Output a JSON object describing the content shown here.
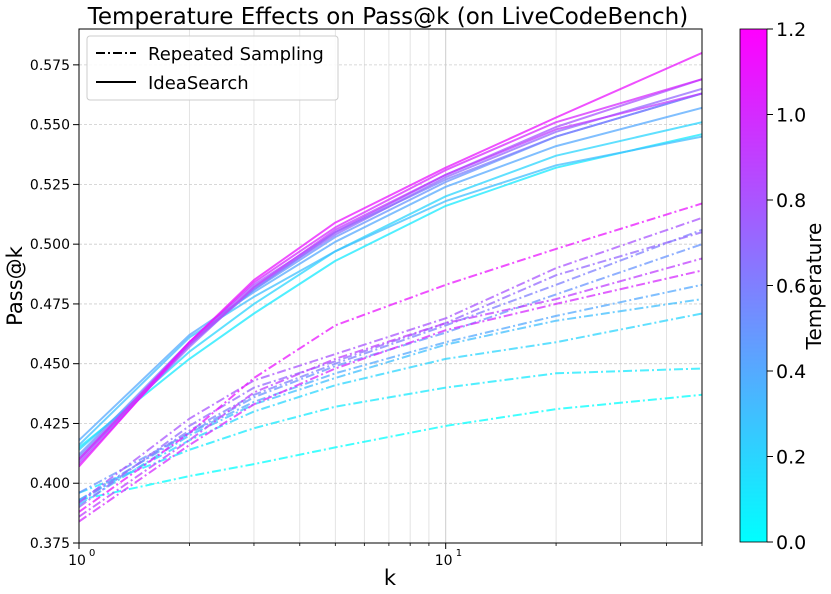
{
  "chart_data": {
    "type": "line",
    "title": "Temperature Effects on Pass@k (on LiveCodeBench)",
    "xlabel": "k",
    "ylabel": "Pass@k",
    "xscale": "log",
    "xlim": [
      1,
      50
    ],
    "ylim": [
      0.375,
      0.59
    ],
    "x_major_ticks": [
      1,
      10
    ],
    "x_tick_labels": [
      [
        "10",
        "0"
      ],
      [
        "10",
        "1"
      ]
    ],
    "y_ticks": [
      0.375,
      0.4,
      0.425,
      0.45,
      0.475,
      0.5,
      0.525,
      0.55,
      0.575
    ],
    "y_tick_labels": [
      "0.375",
      "0.400",
      "0.425",
      "0.450",
      "0.475",
      "0.500",
      "0.525",
      "0.550",
      "0.575"
    ],
    "grid": true,
    "legend": {
      "placement": "top-left",
      "entries": [
        {
          "label": "Repeated Sampling",
          "style": "dashdot"
        },
        {
          "label": "IdeaSearch",
          "style": "solid"
        }
      ]
    },
    "colorbar": {
      "label": "Temperature",
      "range": [
        0.0,
        1.2
      ],
      "ticks": [
        0.0,
        0.2,
        0.4,
        0.6,
        0.8,
        1.0,
        1.2
      ],
      "tick_labels": [
        "0.0",
        "0.2",
        "0.4",
        "0.6",
        "0.8",
        "1.0",
        "1.2"
      ],
      "colormap": "cool",
      "color_low": "#00ffff",
      "color_high": "#ff00ff"
    },
    "x": [
      1,
      2,
      3,
      5,
      10,
      20,
      50
    ],
    "series": [
      {
        "name": "IdeaSearch T=0.1",
        "method": "IdeaSearch",
        "temperature": 0.1,
        "values": [
          0.415,
          0.452,
          0.471,
          0.493,
          0.516,
          0.532,
          0.546
        ]
      },
      {
        "name": "IdeaSearch T=0.2",
        "method": "IdeaSearch",
        "temperature": 0.2,
        "values": [
          0.414,
          0.455,
          0.475,
          0.497,
          0.52,
          0.537,
          0.551
        ]
      },
      {
        "name": "IdeaSearch T=0.3",
        "method": "IdeaSearch",
        "temperature": 0.3,
        "values": [
          0.416,
          0.461,
          0.478,
          0.497,
          0.518,
          0.533,
          0.545
        ]
      },
      {
        "name": "IdeaSearch T=0.4",
        "method": "IdeaSearch",
        "temperature": 0.4,
        "values": [
          0.418,
          0.462,
          0.48,
          0.501,
          0.524,
          0.541,
          0.557
        ]
      },
      {
        "name": "IdeaSearch T=0.5",
        "method": "IdeaSearch",
        "temperature": 0.5,
        "values": [
          0.412,
          0.459,
          0.481,
          0.503,
          0.526,
          0.545,
          0.563
        ]
      },
      {
        "name": "IdeaSearch T=0.6",
        "method": "IdeaSearch",
        "temperature": 0.6,
        "values": [
          0.411,
          0.458,
          0.481,
          0.505,
          0.527,
          0.545,
          0.563
        ]
      },
      {
        "name": "IdeaSearch T=0.7",
        "method": "IdeaSearch",
        "temperature": 0.7,
        "values": [
          0.41,
          0.457,
          0.482,
          0.504,
          0.528,
          0.547,
          0.565
        ]
      },
      {
        "name": "IdeaSearch T=0.8",
        "method": "IdeaSearch",
        "temperature": 0.8,
        "values": [
          0.409,
          0.459,
          0.483,
          0.505,
          0.529,
          0.549,
          0.569
        ]
      },
      {
        "name": "IdeaSearch T=0.9",
        "method": "IdeaSearch",
        "temperature": 0.9,
        "values": [
          0.408,
          0.458,
          0.482,
          0.506,
          0.529,
          0.548,
          0.563
        ]
      },
      {
        "name": "IdeaSearch T=1.0",
        "method": "IdeaSearch",
        "temperature": 1.0,
        "values": [
          0.41,
          0.459,
          0.484,
          0.507,
          0.531,
          0.551,
          0.569
        ]
      },
      {
        "name": "IdeaSearch T=1.1",
        "method": "IdeaSearch",
        "temperature": 1.1,
        "values": [
          0.407,
          0.459,
          0.485,
          0.509,
          0.532,
          0.553,
          0.58
        ]
      },
      {
        "name": "Repeated Sampling T=0.0",
        "method": "Repeated Sampling",
        "temperature": 0.0,
        "values": [
          0.393,
          0.403,
          0.408,
          0.415,
          0.424,
          0.431,
          0.437
        ]
      },
      {
        "name": "Repeated Sampling T=0.1",
        "method": "Repeated Sampling",
        "temperature": 0.1,
        "values": [
          0.396,
          0.414,
          0.423,
          0.432,
          0.44,
          0.446,
          0.448
        ]
      },
      {
        "name": "Repeated Sampling T=0.2",
        "method": "Repeated Sampling",
        "temperature": 0.2,
        "values": [
          0.393,
          0.418,
          0.43,
          0.441,
          0.452,
          0.459,
          0.471
        ]
      },
      {
        "name": "Repeated Sampling T=0.3",
        "method": "Repeated Sampling",
        "temperature": 0.3,
        "values": [
          0.391,
          0.42,
          0.433,
          0.444,
          0.458,
          0.468,
          0.477
        ]
      },
      {
        "name": "Repeated Sampling T=0.4",
        "method": "Repeated Sampling",
        "temperature": 0.4,
        "values": [
          0.393,
          0.421,
          0.434,
          0.446,
          0.459,
          0.47,
          0.483
        ]
      },
      {
        "name": "Repeated Sampling T=0.5",
        "method": "Repeated Sampling",
        "temperature": 0.5,
        "values": [
          0.396,
          0.421,
          0.436,
          0.449,
          0.463,
          0.479,
          0.5
        ]
      },
      {
        "name": "Repeated Sampling T=0.6",
        "method": "Repeated Sampling",
        "temperature": 0.6,
        "values": [
          0.392,
          0.422,
          0.437,
          0.45,
          0.466,
          0.483,
          0.506
        ]
      },
      {
        "name": "Repeated Sampling T=0.7",
        "method": "Repeated Sampling",
        "temperature": 0.7,
        "values": [
          0.39,
          0.424,
          0.44,
          0.451,
          0.467,
          0.487,
          0.505
        ]
      },
      {
        "name": "Repeated Sampling T=0.8",
        "method": "Repeated Sampling",
        "temperature": 0.8,
        "values": [
          0.392,
          0.427,
          0.443,
          0.454,
          0.469,
          0.49,
          0.511
        ]
      },
      {
        "name": "Repeated Sampling T=0.9",
        "method": "Repeated Sampling",
        "temperature": 0.9,
        "values": [
          0.386,
          0.418,
          0.438,
          0.452,
          0.467,
          0.477,
          0.494
        ]
      },
      {
        "name": "Repeated Sampling T=1.0",
        "method": "Repeated Sampling",
        "temperature": 1.0,
        "values": [
          0.384,
          0.416,
          0.433,
          0.448,
          0.464,
          0.475,
          0.489
        ]
      },
      {
        "name": "Repeated Sampling T=1.1",
        "method": "Repeated Sampling",
        "temperature": 1.1,
        "values": [
          0.388,
          0.421,
          0.444,
          0.466,
          0.483,
          0.498,
          0.517
        ]
      }
    ]
  }
}
